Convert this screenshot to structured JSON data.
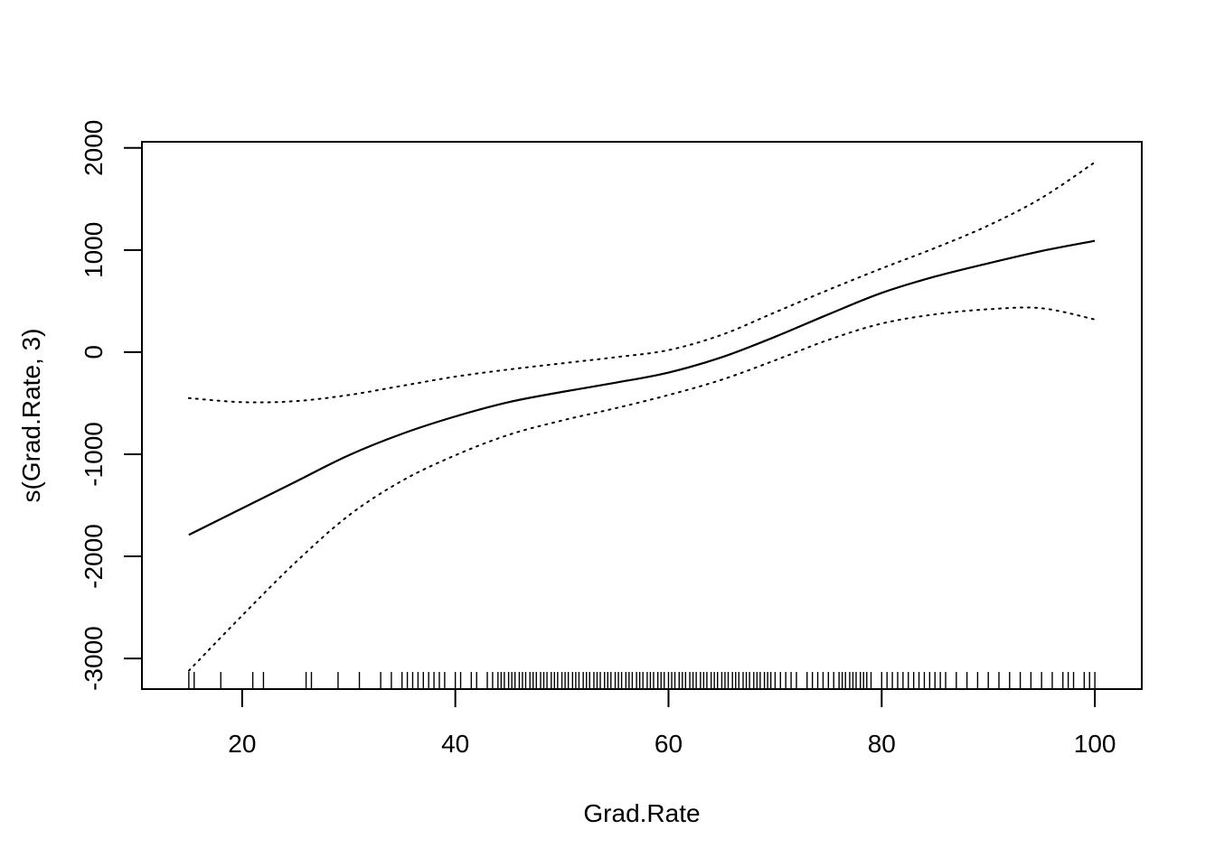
{
  "chart_data": {
    "type": "line",
    "title": "",
    "xlabel": "Grad.Rate",
    "ylabel": "s(Grad.Rate, 3)",
    "xlim": [
      10.6,
      104.4
    ],
    "ylim": [
      -3300,
      2060
    ],
    "xticks": [
      20,
      40,
      60,
      80,
      100
    ],
    "yticks": [
      -3000,
      -2000,
      -1000,
      0,
      1000,
      2000
    ],
    "grid": false,
    "series": [
      {
        "style": "solid",
        "x": [
          15,
          20,
          25,
          30,
          35,
          40,
          45,
          50,
          55,
          60,
          65,
          70,
          75,
          80,
          85,
          90,
          95,
          100
        ],
        "y": [
          -1790,
          -1530,
          -1270,
          -1010,
          -800,
          -630,
          -490,
          -390,
          -300,
          -200,
          -50,
          150,
          370,
          580,
          740,
          870,
          990,
          1090
        ]
      },
      {
        "style": "dotted",
        "x": [
          15,
          20,
          25,
          30,
          35,
          40,
          45,
          50,
          55,
          60,
          65,
          70,
          75,
          80,
          85,
          90,
          95,
          100
        ],
        "y": [
          -450,
          -490,
          -480,
          -420,
          -330,
          -240,
          -170,
          -110,
          -50,
          20,
          170,
          390,
          610,
          820,
          1020,
          1240,
          1510,
          1860
        ]
      },
      {
        "style": "dotted",
        "x": [
          15,
          20,
          25,
          30,
          35,
          40,
          45,
          50,
          55,
          60,
          65,
          70,
          75,
          80,
          85,
          90,
          95,
          100
        ],
        "y": [
          -3120,
          -2580,
          -2060,
          -1600,
          -1260,
          -1010,
          -810,
          -670,
          -550,
          -420,
          -270,
          -80,
          120,
          280,
          370,
          420,
          430,
          320
        ]
      }
    ],
    "rug": [
      15,
      15.5,
      18,
      21,
      22,
      26,
      26.5,
      29,
      31,
      33,
      34,
      35,
      35.5,
      36,
      36.5,
      37,
      37.5,
      38,
      38.5,
      39,
      40,
      40.5,
      41.5,
      42,
      43,
      43.5,
      44,
      44.3,
      44.6,
      45,
      45.3,
      45.6,
      46,
      46.3,
      46.6,
      47,
      47.3,
      47.6,
      48,
      48.3,
      48.6,
      49,
      49.3,
      49.6,
      50,
      50.3,
      50.6,
      51,
      51.3,
      51.6,
      52,
      52.3,
      52.6,
      53,
      53.3,
      53.6,
      54,
      54.3,
      54.6,
      55,
      55.3,
      55.6,
      56,
      56.3,
      56.6,
      57,
      57.3,
      57.6,
      58,
      58.3,
      58.6,
      59,
      59.3,
      59.6,
      60,
      60.3,
      60.6,
      61,
      61.3,
      61.6,
      62,
      62.3,
      62.6,
      63,
      63.3,
      63.6,
      64,
      64.3,
      64.6,
      65,
      65.3,
      65.6,
      66,
      66.3,
      66.6,
      67,
      67.3,
      67.6,
      68,
      68.3,
      68.6,
      69,
      69.3,
      69.6,
      70,
      70.5,
      71,
      71.5,
      72,
      73,
      73.5,
      74,
      74.5,
      75,
      75.5,
      76,
      76.3,
      76.6,
      77,
      77.3,
      77.6,
      78,
      78.3,
      78.6,
      79,
      80,
      80.5,
      81,
      81.5,
      82,
      82.5,
      83,
      83.5,
      84,
      84.5,
      85,
      85.5,
      86,
      87,
      88,
      89,
      90,
      91,
      92,
      93,
      94,
      95,
      96,
      97,
      97.5,
      98,
      99,
      99.5,
      100
    ]
  }
}
